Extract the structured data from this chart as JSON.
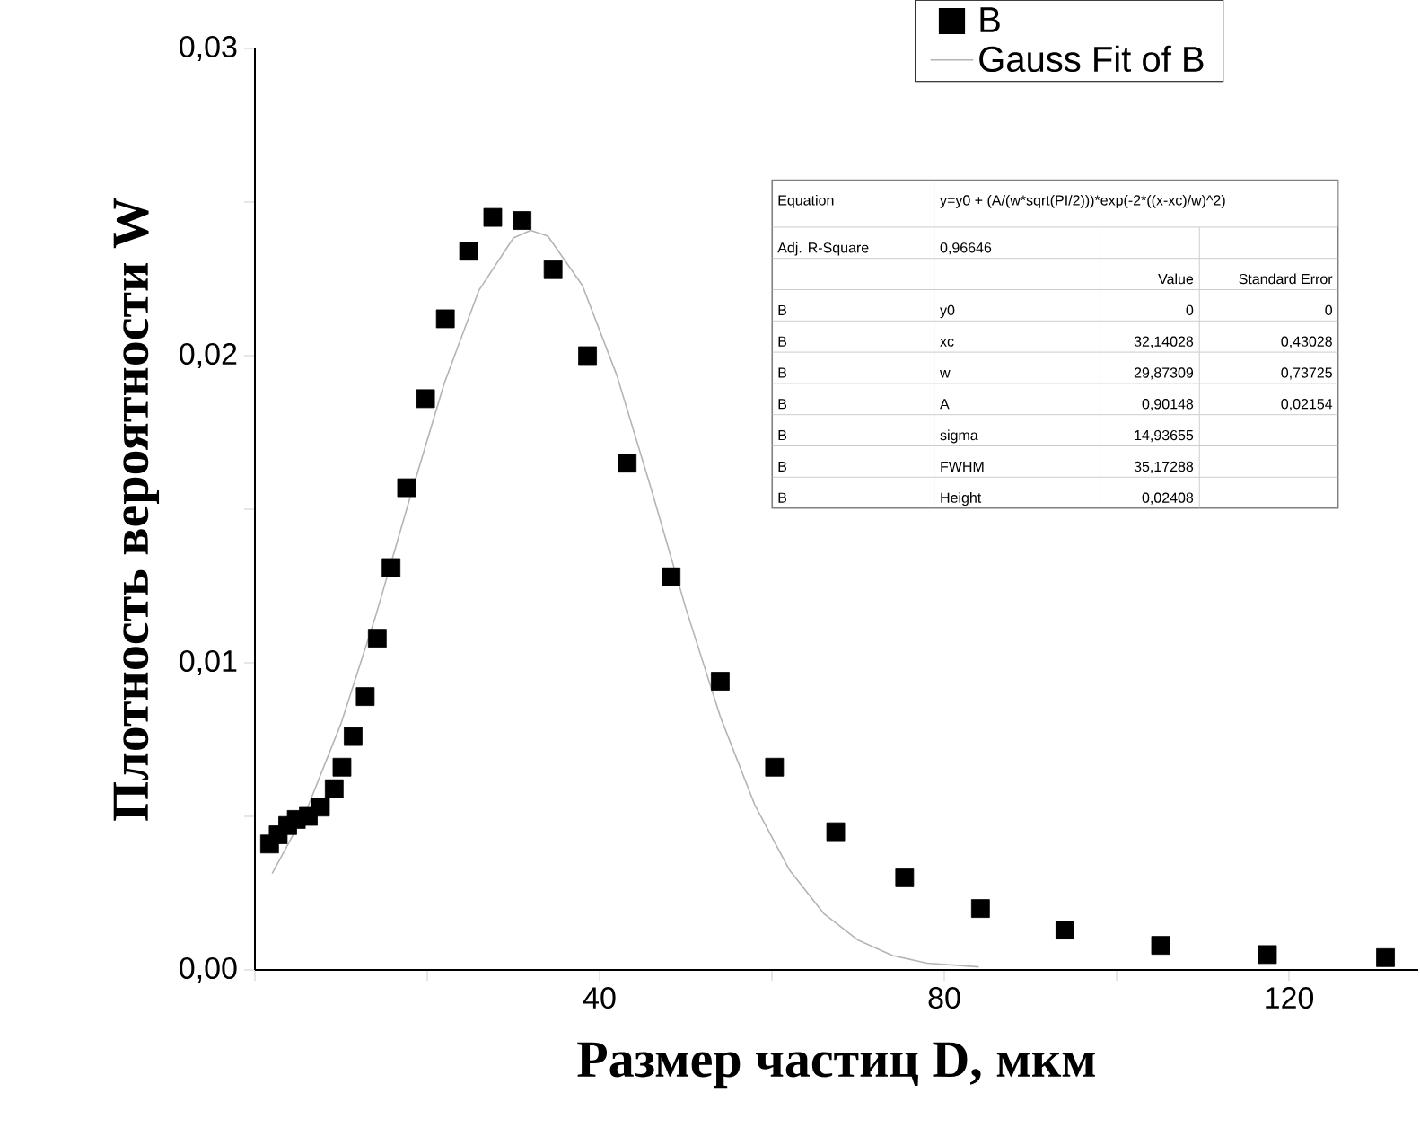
{
  "chart_data": {
    "type": "scatter",
    "xlabel": "Размер частиц D, мкм",
    "ylabel": "Плотность вероятности W",
    "xlim": [
      0,
      135
    ],
    "ylim": [
      0,
      0.03
    ],
    "xticks": [
      {
        "value": 0,
        "label": null
      },
      {
        "value": 20,
        "label": null
      },
      40,
      {
        "value": 60,
        "label": null
      },
      80,
      {
        "value": 100,
        "label": null
      },
      120
    ],
    "yticks": [
      {
        "value": 0,
        "label": "0,00"
      },
      {
        "value": 0.005,
        "label": null
      },
      {
        "value": 0.01,
        "label": "0,01"
      },
      {
        "value": 0.015,
        "label": null
      },
      {
        "value": 0.02,
        "label": "0,02"
      },
      {
        "value": 0.025,
        "label": null
      },
      {
        "value": 0.03,
        "label": "0,03"
      }
    ],
    "legend": "top right",
    "series": [
      {
        "name": "B",
        "marker": "square",
        "color": "#000000",
        "x": [
          1.7,
          2.7,
          3.8,
          4.8,
          6.2,
          7.6,
          9.2,
          10.1,
          11.4,
          12.8,
          14.2,
          15.8,
          17.6,
          19.8,
          22.1,
          24.8,
          27.6,
          31.0,
          34.6,
          38.6,
          43.2,
          48.3,
          54.0,
          60.3,
          67.4,
          75.4,
          84.2,
          94.0,
          105.1,
          117.5,
          131.2
        ],
        "values": [
          0.0041,
          0.0044,
          0.0047,
          0.0049,
          0.005,
          0.0053,
          0.0059,
          0.0066,
          0.0076,
          0.0089,
          0.0108,
          0.0131,
          0.0157,
          0.0186,
          0.0212,
          0.0234,
          0.0245,
          0.0244,
          0.0228,
          0.02,
          0.0165,
          0.0128,
          0.0094,
          0.0066,
          0.0045,
          0.003,
          0.002,
          0.0013,
          0.0008,
          0.0005,
          0.0004
        ]
      },
      {
        "name": "Gauss Fit of B",
        "type": "line",
        "marker": "none",
        "color": "#b4b4b4",
        "x": [
          2,
          6,
          10,
          14,
          18,
          22,
          26,
          30,
          32,
          34,
          38,
          42,
          46,
          50,
          54,
          58,
          62,
          66,
          70,
          74,
          78,
          84
        ],
        "values": [
          0.00314,
          0.00521,
          0.00803,
          0.01151,
          0.01538,
          0.01912,
          0.02213,
          0.02383,
          0.02408,
          0.02389,
          0.02229,
          0.01936,
          0.01565,
          0.01178,
          0.00825,
          0.00538,
          0.00327,
          0.00184,
          0.00097,
          0.00047,
          0.00022,
          0.0001
        ]
      }
    ],
    "annotations": [
      "Equation",
      "y=y0 + (A/(w*sqrt(PI/2)))",
      "*exp(-2",
      "*((x-xc)/w)^2)",
      "Adj. R-Square",
      "0,96646",
      "Value",
      "Standard Error",
      "B",
      "y0",
      "0",
      "0",
      "B",
      "xc",
      "32,14028",
      "0,43028",
      "B",
      "w",
      "29,87309",
      "0,73725",
      "B",
      "A",
      "0,90148",
      "0,02154",
      "B",
      "sigma",
      "14,93655",
      "B",
      "FWHM",
      "35,17288",
      "B",
      "Height",
      "0,02408"
    ]
  }
}
